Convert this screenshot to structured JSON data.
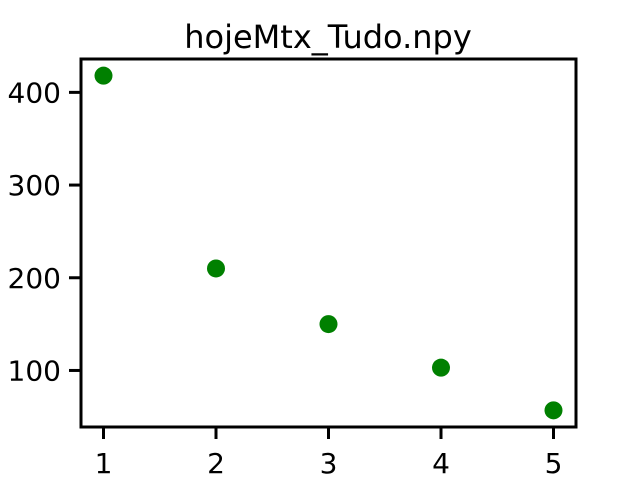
{
  "chart_data": {
    "type": "scatter",
    "title": "hojeMtx_Tudo.npy",
    "xlabel": "",
    "ylabel": "",
    "x": [
      1,
      2,
      3,
      4,
      5
    ],
    "y": [
      418,
      210,
      150,
      103,
      57
    ],
    "xlim": [
      0.8,
      5.2
    ],
    "ylim": [
      39,
      436
    ],
    "xticks": [
      1,
      2,
      3,
      4,
      5
    ],
    "yticks": [
      100,
      200,
      300,
      400
    ],
    "grid": false,
    "legend": "none",
    "marker_color": "#008000"
  }
}
